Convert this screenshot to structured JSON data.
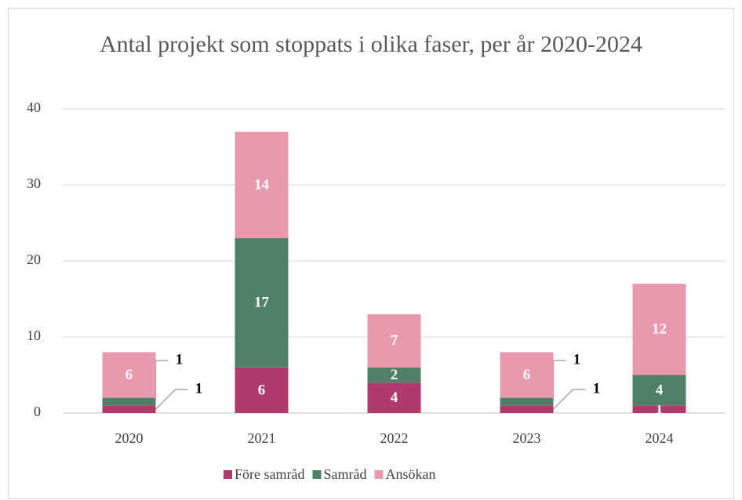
{
  "chart_data": {
    "type": "stacked_bar",
    "title": "Antal projekt som stoppats i olika faser, per år 2020-2024",
    "categories": [
      "2020",
      "2021",
      "2022",
      "2023",
      "2024"
    ],
    "series": [
      {
        "name": "Före samråd",
        "color": "#b03a6b",
        "values": [
          1,
          6,
          4,
          1,
          1
        ]
      },
      {
        "name": "Samråd",
        "color": "#4e8068",
        "values": [
          1,
          17,
          2,
          1,
          4
        ]
      },
      {
        "name": "Ansökan",
        "color": "#e899ae",
        "values": [
          6,
          14,
          7,
          6,
          12
        ]
      }
    ],
    "ylim": [
      0,
      40
    ],
    "yticks": [
      0,
      10,
      20,
      30,
      40
    ],
    "grid": true,
    "legend": "bottom"
  }
}
